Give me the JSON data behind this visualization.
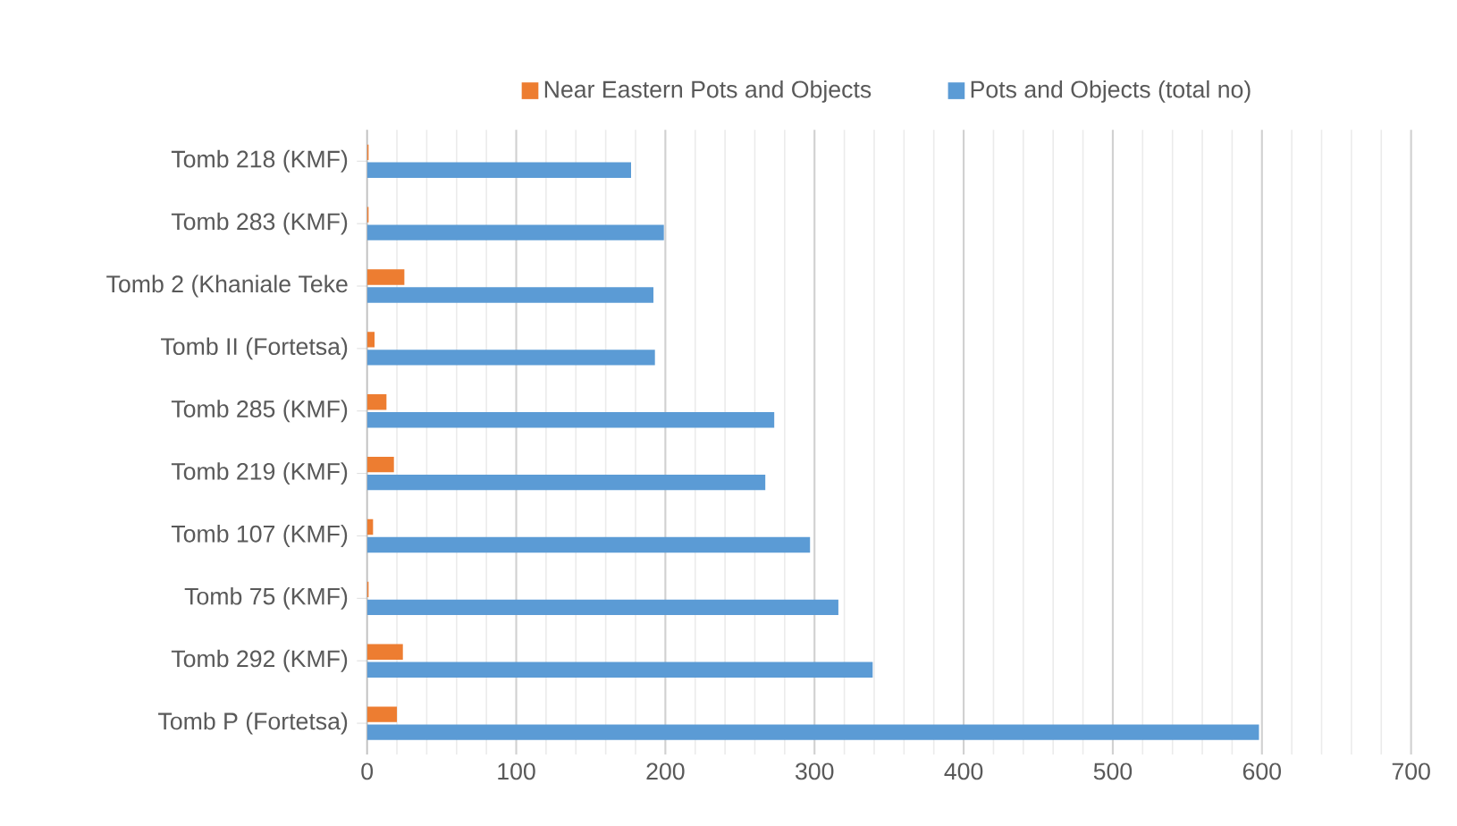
{
  "chart_data": {
    "type": "bar",
    "orientation": "horizontal",
    "categories": [
      "Tomb 218 (KMF)",
      "Tomb 283 (KMF)",
      "Tomb 2 (Khaniale Teke",
      "Tomb II (Fortetsa)",
      "Tomb 285 (KMF)",
      "Tomb 219 (KMF)",
      "Tomb 107 (KMF)",
      "Tomb 75 (KMF)",
      "Tomb 292 (KMF)",
      "Tomb P (Fortetsa)"
    ],
    "series": [
      {
        "name": "Near Eastern Pots and Objects",
        "color": "#ed7d31",
        "values": [
          1,
          1,
          25,
          5,
          13,
          18,
          4,
          1,
          24,
          20
        ]
      },
      {
        "name": "Pots and Objects (total no)",
        "color": "#5b9bd5",
        "values": [
          177,
          199,
          192,
          193,
          273,
          267,
          297,
          316,
          339,
          598
        ]
      }
    ],
    "xlim": [
      0,
      700
    ],
    "xticks": [
      0,
      100,
      200,
      300,
      400,
      500,
      600,
      700
    ],
    "grid": "x",
    "legend": "top"
  }
}
